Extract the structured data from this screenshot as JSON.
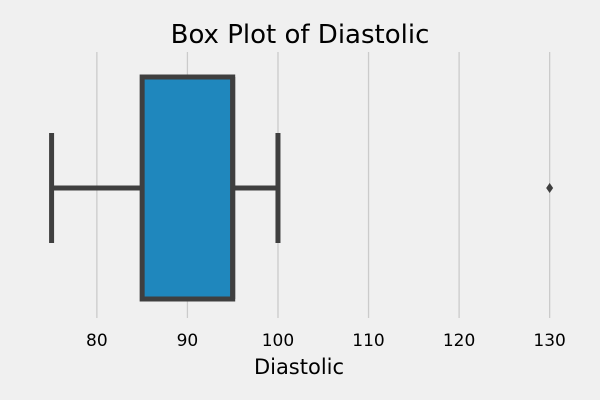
{
  "chart_data": {
    "type": "box",
    "title": "Box Plot of Diastolic",
    "xlabel": "Diastolic",
    "ylabel": "",
    "xlim": [
      73.5,
      132.8
    ],
    "xticks": [
      80,
      90,
      100,
      110,
      120,
      130
    ],
    "grid": "vertical",
    "colors": {
      "background": "#f0f0f0",
      "box_fill": "#1f87bd",
      "box_edge": "#3f3f3f",
      "grid": "#cbcbcb"
    },
    "box": {
      "whisker_low": 75,
      "q1": 85,
      "median": 95,
      "q3": 95,
      "whisker_high": 100,
      "outliers": [
        130
      ]
    }
  }
}
